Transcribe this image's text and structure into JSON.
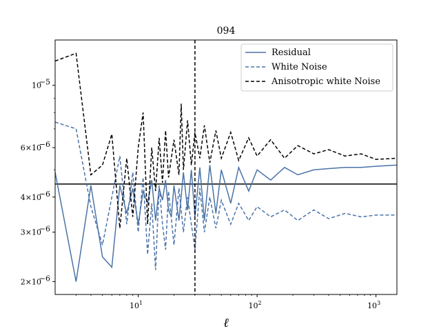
{
  "chart_data": {
    "type": "line",
    "title": "094",
    "xlabel": "ℓ",
    "ylabel": "",
    "xscale": "log",
    "yscale": "log",
    "xlim": [
      2,
      1500
    ],
    "ylim": [
      1.8e-06,
      1.45e-05
    ],
    "x_ticks": [
      {
        "value": 10,
        "label": "10",
        "sup": "1"
      },
      {
        "value": 100,
        "label": "10",
        "sup": "2"
      },
      {
        "value": 1000,
        "label": "10",
        "sup": "3"
      }
    ],
    "y_ticks": [
      {
        "value": 2e-06,
        "label": "2×10",
        "sup": "−6"
      },
      {
        "value": 3e-06,
        "label": "3×10",
        "sup": "−6"
      },
      {
        "value": 4e-06,
        "label": "4×10",
        "sup": "−6"
      },
      {
        "value": 6e-06,
        "label": "6×10",
        "sup": "−6"
      },
      {
        "value": 1e-05,
        "label": "10",
        "sup": "−5"
      }
    ],
    "legend_position": "top-right",
    "hline": {
      "y": 4.45e-06,
      "color": "#000000",
      "style": "solid"
    },
    "vline": {
      "x": 30,
      "color": "#000000",
      "style": "dashed"
    },
    "series": [
      {
        "name": "Residual",
        "color": "#4a72a8",
        "style": "solid",
        "points": [
          [
            2,
            4.9e-06
          ],
          [
            3,
            2e-06
          ],
          [
            4,
            4.4e-06
          ],
          [
            5,
            2.45e-06
          ],
          [
            6,
            2.25e-06
          ],
          [
            7,
            4.4e-06
          ],
          [
            8,
            3.5e-06
          ],
          [
            9,
            4.3e-06
          ],
          [
            10,
            3.2e-06
          ],
          [
            11,
            4.2e-06
          ],
          [
            12,
            3.8e-06
          ],
          [
            13,
            4.6e-06
          ],
          [
            14,
            3.3e-06
          ],
          [
            15,
            4.3e-06
          ],
          [
            16,
            3.9e-06
          ],
          [
            17,
            4.6e-06
          ],
          [
            18,
            3.6e-06
          ],
          [
            19,
            3.4e-06
          ],
          [
            20,
            4.4e-06
          ],
          [
            22,
            3.3e-06
          ],
          [
            24,
            4.9e-06
          ],
          [
            26,
            3.6e-06
          ],
          [
            28,
            5e-06
          ],
          [
            30,
            3.4e-06
          ],
          [
            33,
            5.1e-06
          ],
          [
            36,
            3.3e-06
          ],
          [
            40,
            5.2e-06
          ],
          [
            45,
            3.5e-06
          ],
          [
            50,
            5e-06
          ],
          [
            60,
            3.8e-06
          ],
          [
            70,
            5.1e-06
          ],
          [
            85,
            4.2e-06
          ],
          [
            100,
            5e-06
          ],
          [
            130,
            4.6e-06
          ],
          [
            170,
            5.1e-06
          ],
          [
            220,
            4.8e-06
          ],
          [
            300,
            5e-06
          ],
          [
            400,
            5.05e-06
          ],
          [
            550,
            5.1e-06
          ],
          [
            750,
            5.1e-06
          ],
          [
            1000,
            5.15e-06
          ],
          [
            1500,
            5.2e-06
          ]
        ]
      },
      {
        "name": "White Noise",
        "color": "#4a72a8",
        "style": "dashed",
        "points": [
          [
            2,
            7.4e-06
          ],
          [
            3,
            7e-06
          ],
          [
            4,
            3.7e-06
          ],
          [
            5,
            2.7e-06
          ],
          [
            6,
            4e-06
          ],
          [
            7,
            5.6e-06
          ],
          [
            8,
            3.2e-06
          ],
          [
            9,
            4.9e-06
          ],
          [
            10,
            3e-06
          ],
          [
            11,
            4.7e-06
          ],
          [
            12,
            2.5e-06
          ],
          [
            13,
            3.8e-06
          ],
          [
            14,
            2.2e-06
          ],
          [
            15,
            4.4e-06
          ],
          [
            16,
            3.2e-06
          ],
          [
            17,
            2.6e-06
          ],
          [
            18,
            4.2e-06
          ],
          [
            20,
            2.7e-06
          ],
          [
            22,
            4.3e-06
          ],
          [
            24,
            3e-06
          ],
          [
            26,
            4e-06
          ],
          [
            28,
            3.2e-06
          ],
          [
            30,
            2.6e-06
          ],
          [
            33,
            4.3e-06
          ],
          [
            36,
            3e-06
          ],
          [
            40,
            4e-06
          ],
          [
            45,
            3.1e-06
          ],
          [
            50,
            3.9e-06
          ],
          [
            60,
            3.2e-06
          ],
          [
            70,
            3.8e-06
          ],
          [
            85,
            3.3e-06
          ],
          [
            100,
            3.7e-06
          ],
          [
            130,
            3.4e-06
          ],
          [
            170,
            3.6e-06
          ],
          [
            220,
            3.3e-06
          ],
          [
            300,
            3.6e-06
          ],
          [
            400,
            3.35e-06
          ],
          [
            550,
            3.5e-06
          ],
          [
            750,
            3.4e-06
          ],
          [
            1000,
            3.45e-06
          ],
          [
            1500,
            3.45e-06
          ]
        ]
      },
      {
        "name": "Anisotropic white Noise",
        "color": "#000000",
        "style": "dashed",
        "points": [
          [
            2,
            1.22e-05
          ],
          [
            3,
            1.3e-05
          ],
          [
            4,
            4.8e-06
          ],
          [
            5,
            5.2e-06
          ],
          [
            6,
            6.7e-06
          ],
          [
            7,
            3.1e-06
          ],
          [
            8,
            5.5e-06
          ],
          [
            9,
            3.4e-06
          ],
          [
            10,
            6e-06
          ],
          [
            11,
            8e-06
          ],
          [
            12,
            3.2e-06
          ],
          [
            13,
            6e-06
          ],
          [
            14,
            4.2e-06
          ],
          [
            15,
            6.5e-06
          ],
          [
            16,
            4.5e-06
          ],
          [
            17,
            6.9e-06
          ],
          [
            18,
            4.7e-06
          ],
          [
            20,
            6.4e-06
          ],
          [
            22,
            4.8e-06
          ],
          [
            23,
            8.6e-06
          ],
          [
            24,
            5e-06
          ],
          [
            26,
            7.5e-06
          ],
          [
            28,
            5.2e-06
          ],
          [
            30,
            6.8e-06
          ],
          [
            33,
            5.5e-06
          ],
          [
            36,
            7.2e-06
          ],
          [
            40,
            5.3e-06
          ],
          [
            45,
            6.9e-06
          ],
          [
            50,
            5.5e-06
          ],
          [
            60,
            6.8e-06
          ],
          [
            70,
            5.4e-06
          ],
          [
            85,
            6.5e-06
          ],
          [
            100,
            5.6e-06
          ],
          [
            130,
            6.4e-06
          ],
          [
            170,
            5.5e-06
          ],
          [
            220,
            6.1e-06
          ],
          [
            300,
            5.7e-06
          ],
          [
            400,
            5.9e-06
          ],
          [
            550,
            5.6e-06
          ],
          [
            750,
            5.7e-06
          ],
          [
            1000,
            5.45e-06
          ],
          [
            1500,
            5.5e-06
          ]
        ]
      }
    ]
  }
}
